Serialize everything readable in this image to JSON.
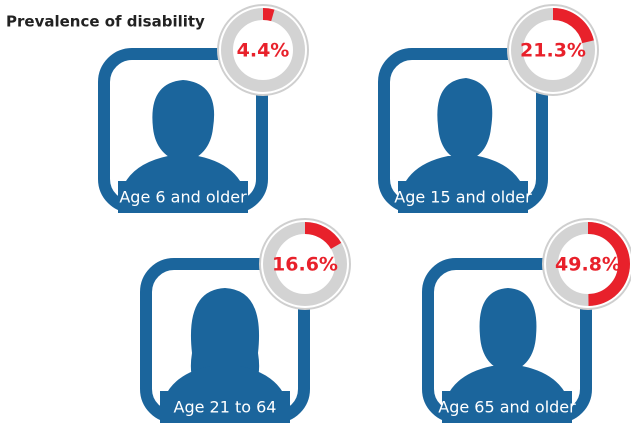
{
  "chart_data": {
    "type": "gauge",
    "title": "Prevalence of disability",
    "categories": [
      "Age 6 and older",
      "Age 15 and older",
      "Age 21 to 64",
      "Age 65 and older"
    ],
    "values": [
      4.4,
      21.3,
      16.6,
      49.8
    ],
    "value_labels": [
      "4.4%",
      "21.3%",
      "16.6%",
      "49.8%"
    ],
    "color": "#e8212b"
  }
}
